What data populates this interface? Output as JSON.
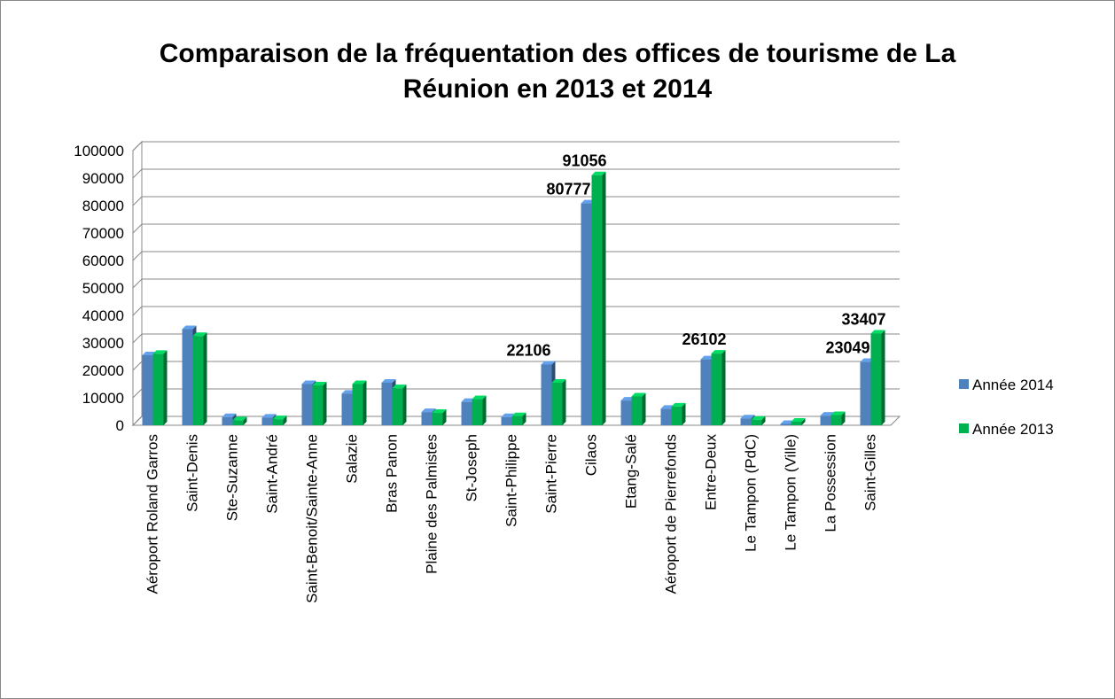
{
  "chart_data": {
    "type": "bar3d",
    "title": "Comparaison de la fréquentation des offices de tourisme de La Réunion en 2013 et 2014",
    "categories": [
      "Aéroport Roland Garros",
      "Saint-Denis",
      "Ste-Suzanne",
      "Saint-André",
      "Saint-Benoit/Sainte-Anne",
      "Salazie",
      "Bras Panon",
      "Plaine des Palmistes",
      "St-Joseph",
      "Saint-Philippe",
      "Saint-Pierre",
      "Cilaos",
      "Etang-Salé",
      "Aéroport de Pierrefonds",
      "Entre-Deux",
      "Le Tampon (PdC)",
      "Le Tampon (Ville)",
      "La Possession",
      "Saint-Gilles"
    ],
    "series": [
      {
        "name": "Année 2014",
        "color": "#4f81bd",
        "values": [
          25500,
          35000,
          3000,
          2800,
          15000,
          11500,
          15500,
          4800,
          8500,
          3000,
          22106,
          80777,
          9000,
          6000,
          24000,
          2500,
          500,
          3500,
          23049
        ],
        "value_labels": [
          null,
          null,
          null,
          null,
          null,
          null,
          null,
          null,
          null,
          null,
          "22106",
          "80777",
          null,
          null,
          null,
          null,
          null,
          null,
          "23049"
        ]
      },
      {
        "name": "Année 2013",
        "color": "#00b050",
        "values": [
          26000,
          32500,
          1800,
          2200,
          14500,
          15000,
          13500,
          4500,
          9500,
          3300,
          15500,
          91056,
          10500,
          6800,
          26102,
          2000,
          1300,
          3700,
          33407
        ],
        "value_labels": [
          null,
          null,
          null,
          null,
          null,
          null,
          null,
          null,
          null,
          null,
          null,
          "91056",
          null,
          null,
          "26102",
          null,
          null,
          null,
          "33407"
        ]
      }
    ],
    "ylim": [
      0,
      100000
    ],
    "yticks": [
      0,
      10000,
      20000,
      30000,
      40000,
      50000,
      60000,
      70000,
      80000,
      90000,
      100000
    ],
    "grid": true,
    "legend": "right"
  }
}
